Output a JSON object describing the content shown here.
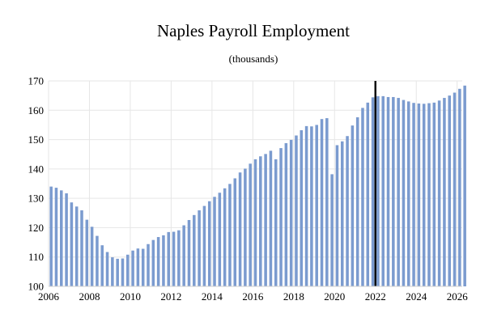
{
  "chart_data": {
    "type": "bar",
    "title": "Naples Payroll Employment",
    "subtitle": "(thousands)",
    "xlabel": "",
    "ylabel": "",
    "ylim": [
      100,
      170
    ],
    "y_ticks": [
      "100",
      "110",
      "120",
      "130",
      "140",
      "150",
      "160",
      "170"
    ],
    "x_ticks": [
      "2006",
      "2008",
      "2010",
      "2012",
      "2014",
      "2016",
      "2018",
      "2020",
      "2022",
      "2024",
      "2026"
    ],
    "x_start": 2006.0,
    "x_step": 0.25,
    "grid": true,
    "bar_color": "#7b9bcf",
    "marker_line": {
      "x": 2022.0,
      "color": "#000000"
    },
    "values": [
      134.0,
      133.6,
      132.7,
      131.7,
      128.6,
      127.2,
      125.9,
      122.7,
      120.3,
      117.2,
      114.0,
      111.7,
      109.9,
      109.4,
      109.5,
      110.8,
      112.2,
      112.9,
      112.8,
      114.4,
      115.8,
      116.8,
      117.4,
      118.5,
      118.6,
      119.1,
      120.8,
      122.6,
      124.3,
      125.9,
      127.4,
      129.0,
      130.5,
      131.9,
      133.4,
      134.9,
      136.8,
      138.8,
      140.1,
      141.8,
      143.3,
      144.3,
      145.1,
      146.2,
      143.3,
      147.1,
      148.8,
      149.9,
      151.4,
      153.2,
      154.6,
      154.5,
      155.0,
      157.0,
      157.3,
      138.2,
      148.1,
      149.4,
      151.2,
      154.8,
      157.6,
      160.8,
      162.6,
      164.4,
      164.8,
      164.8,
      164.5,
      164.5,
      164.2,
      163.5,
      163.0,
      162.5,
      162.3,
      162.2,
      162.4,
      162.6,
      163.3,
      164.2,
      165.0,
      166.0,
      167.3,
      168.4
    ]
  }
}
